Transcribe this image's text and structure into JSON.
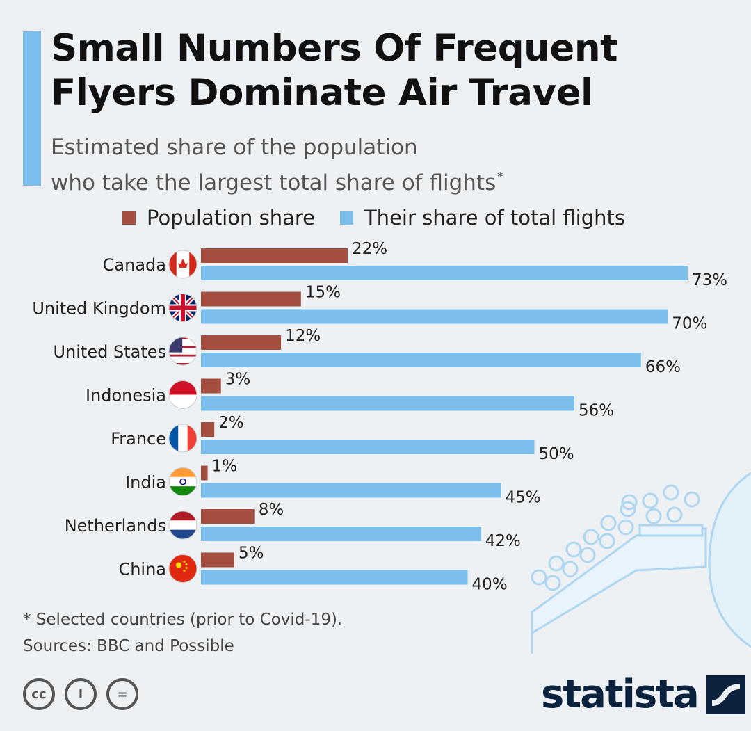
{
  "title": "Small Numbers Of Frequent Flyers Dominate Air Travel",
  "subtitle_line1": "Estimated share of the population",
  "subtitle_line2": "who take the largest total share of flights",
  "subtitle_marker": "*",
  "colors": {
    "population": "#a34e3f",
    "flights": "#7cbfec",
    "accent": "#7cbfec",
    "background": "#edf1f4"
  },
  "chart_data": {
    "type": "bar",
    "orientation": "horizontal",
    "categories": [
      "Canada",
      "United Kingdom",
      "United States",
      "Indonesia",
      "France",
      "India",
      "Netherlands",
      "China"
    ],
    "flag_icons": [
      "canada-flag-icon",
      "uk-flag-icon",
      "us-flag-icon",
      "indonesia-flag-icon",
      "france-flag-icon",
      "india-flag-icon",
      "netherlands-flag-icon",
      "china-flag-icon"
    ],
    "series": [
      {
        "name": "Population share",
        "values": [
          22,
          15,
          12,
          3,
          2,
          1,
          8,
          5
        ],
        "labels": [
          "22%",
          "15%",
          "12%",
          "3%",
          "2%",
          "1%",
          "8%",
          "5%"
        ]
      },
      {
        "name": "Their share of total flights",
        "values": [
          73,
          70,
          66,
          56,
          50,
          45,
          42,
          40
        ],
        "labels": [
          "73%",
          "70%",
          "66%",
          "56%",
          "50%",
          "45%",
          "42%",
          "40%"
        ]
      }
    ],
    "xlim": [
      0,
      73
    ],
    "grid": false,
    "legend": "top"
  },
  "footnote_line1": "* Selected countries (prior to Covid-19).",
  "footnote_line2": "Sources: BBC and Possible",
  "brand": "statista",
  "license_icons": [
    "cc",
    "i",
    "="
  ]
}
